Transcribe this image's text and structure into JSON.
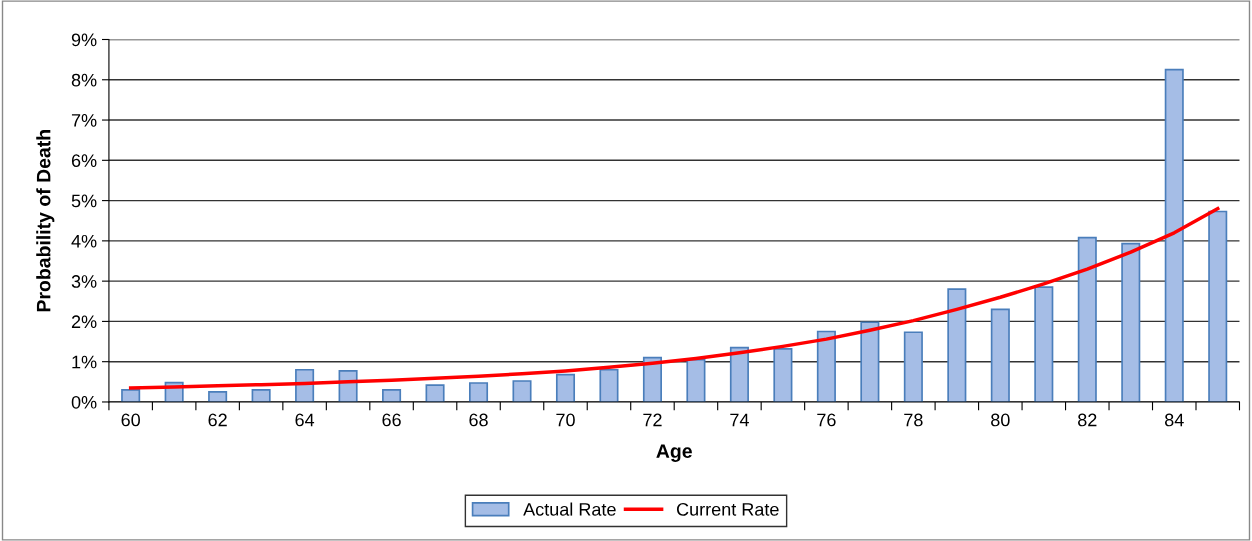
{
  "chart_data": {
    "type": "bar",
    "xlabel": "Age",
    "ylabel": "Probability of Death",
    "categories": [
      "60",
      null,
      "62",
      null,
      "64",
      null,
      "66",
      null,
      "68",
      null,
      "70",
      null,
      "72",
      null,
      "74",
      null,
      "76",
      null,
      "78",
      null,
      "80",
      null,
      "82",
      null,
      "84",
      null
    ],
    "series": [
      {
        "name": "Actual Rate",
        "color": "#a5bde6",
        "values": [
          0.3,
          0.48,
          0.25,
          0.3,
          0.8,
          0.77,
          0.3,
          0.42,
          0.47,
          0.52,
          0.68,
          0.8,
          1.1,
          1.05,
          1.35,
          1.32,
          1.75,
          1.98,
          1.73,
          2.8,
          2.3,
          2.85,
          4.08,
          3.93,
          8.25,
          4.73
        ]
      },
      {
        "name": "Current Rate",
        "type": "line",
        "color": "#ff0000",
        "values": [
          0.35,
          0.37,
          0.4,
          0.43,
          0.46,
          0.5,
          0.54,
          0.59,
          0.64,
          0.7,
          0.77,
          0.86,
          0.96,
          1.08,
          1.22,
          1.38,
          1.56,
          1.78,
          2.02,
          2.3,
          2.6,
          2.93,
          3.3,
          3.72,
          4.2,
          4.8
        ]
      }
    ],
    "ylim": [
      0,
      9
    ],
    "yticks": [
      {
        "value": 0,
        "label": "0%"
      },
      {
        "value": 1,
        "label": "1%"
      },
      {
        "value": 2,
        "label": "2%"
      },
      {
        "value": 3,
        "label": "3%"
      },
      {
        "value": 4,
        "label": "4%"
      },
      {
        "value": 5,
        "label": "5%"
      },
      {
        "value": 6,
        "label": "6%"
      },
      {
        "value": 7,
        "label": "7%"
      },
      {
        "value": 8,
        "label": "8%"
      },
      {
        "value": 9,
        "label": "9%"
      }
    ],
    "grid": "y",
    "legend": "bottom",
    "marker": "none",
    "line_style": "solid"
  }
}
